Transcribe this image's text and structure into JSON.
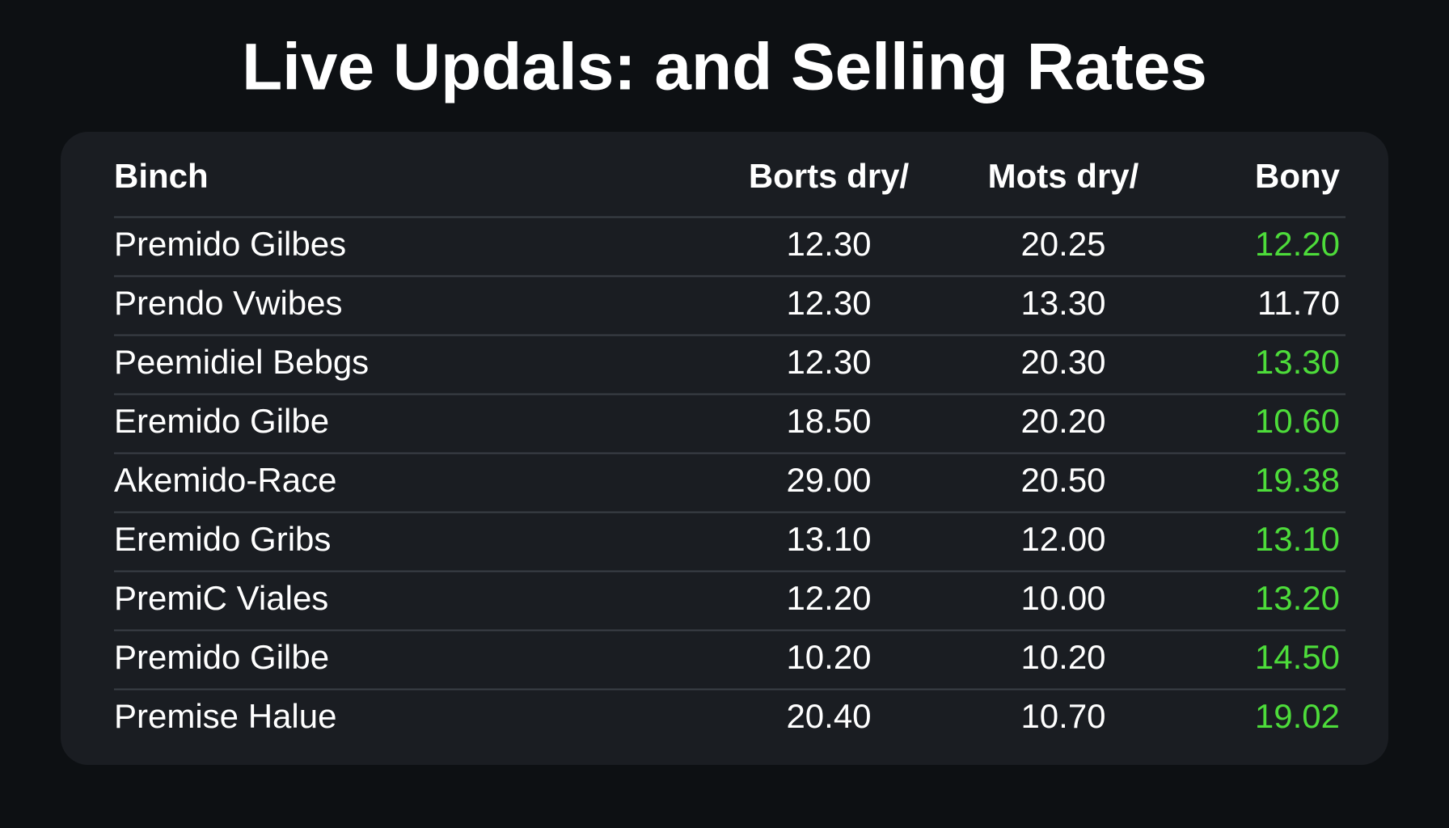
{
  "header": {
    "title": "Live Updals: and Selling Rates"
  },
  "table": {
    "columns": [
      "Binch",
      "Borts dry/",
      "Mots dry/",
      "Bony"
    ],
    "rows": [
      [
        "Premido Gilbes",
        "12.30",
        "20.25",
        "12.20"
      ],
      [
        "Prendo Vwibes",
        "12.30",
        "13.30",
        "11.70"
      ],
      [
        "Peemidiel Bebgs",
        "12.30",
        "20.30",
        "13.30"
      ],
      [
        "Eremido Gilbe",
        "18.50",
        "20.20",
        "10.60"
      ],
      [
        "Akemido-Race",
        "29.00",
        "20.50",
        "19.38"
      ],
      [
        "Eremido Gribs",
        "13.10",
        "12.00",
        "13.10"
      ],
      [
        "PremiC Viales",
        "12.20",
        "10.00",
        "13.20"
      ],
      [
        "Premido Gilbe",
        "10.20",
        "10.20",
        "14.50"
      ],
      [
        "Premise Halue",
        "20.40",
        "10.70",
        "19.02"
      ]
    ],
    "last_column_colors": [
      "#4ddc3a",
      "#ffffff",
      "#4ddc3a",
      "#4ddc3a",
      "#4ddc3a",
      "#4ddc3a",
      "#4ddc3a",
      "#4ddc3a",
      "#4ddc3a"
    ]
  }
}
